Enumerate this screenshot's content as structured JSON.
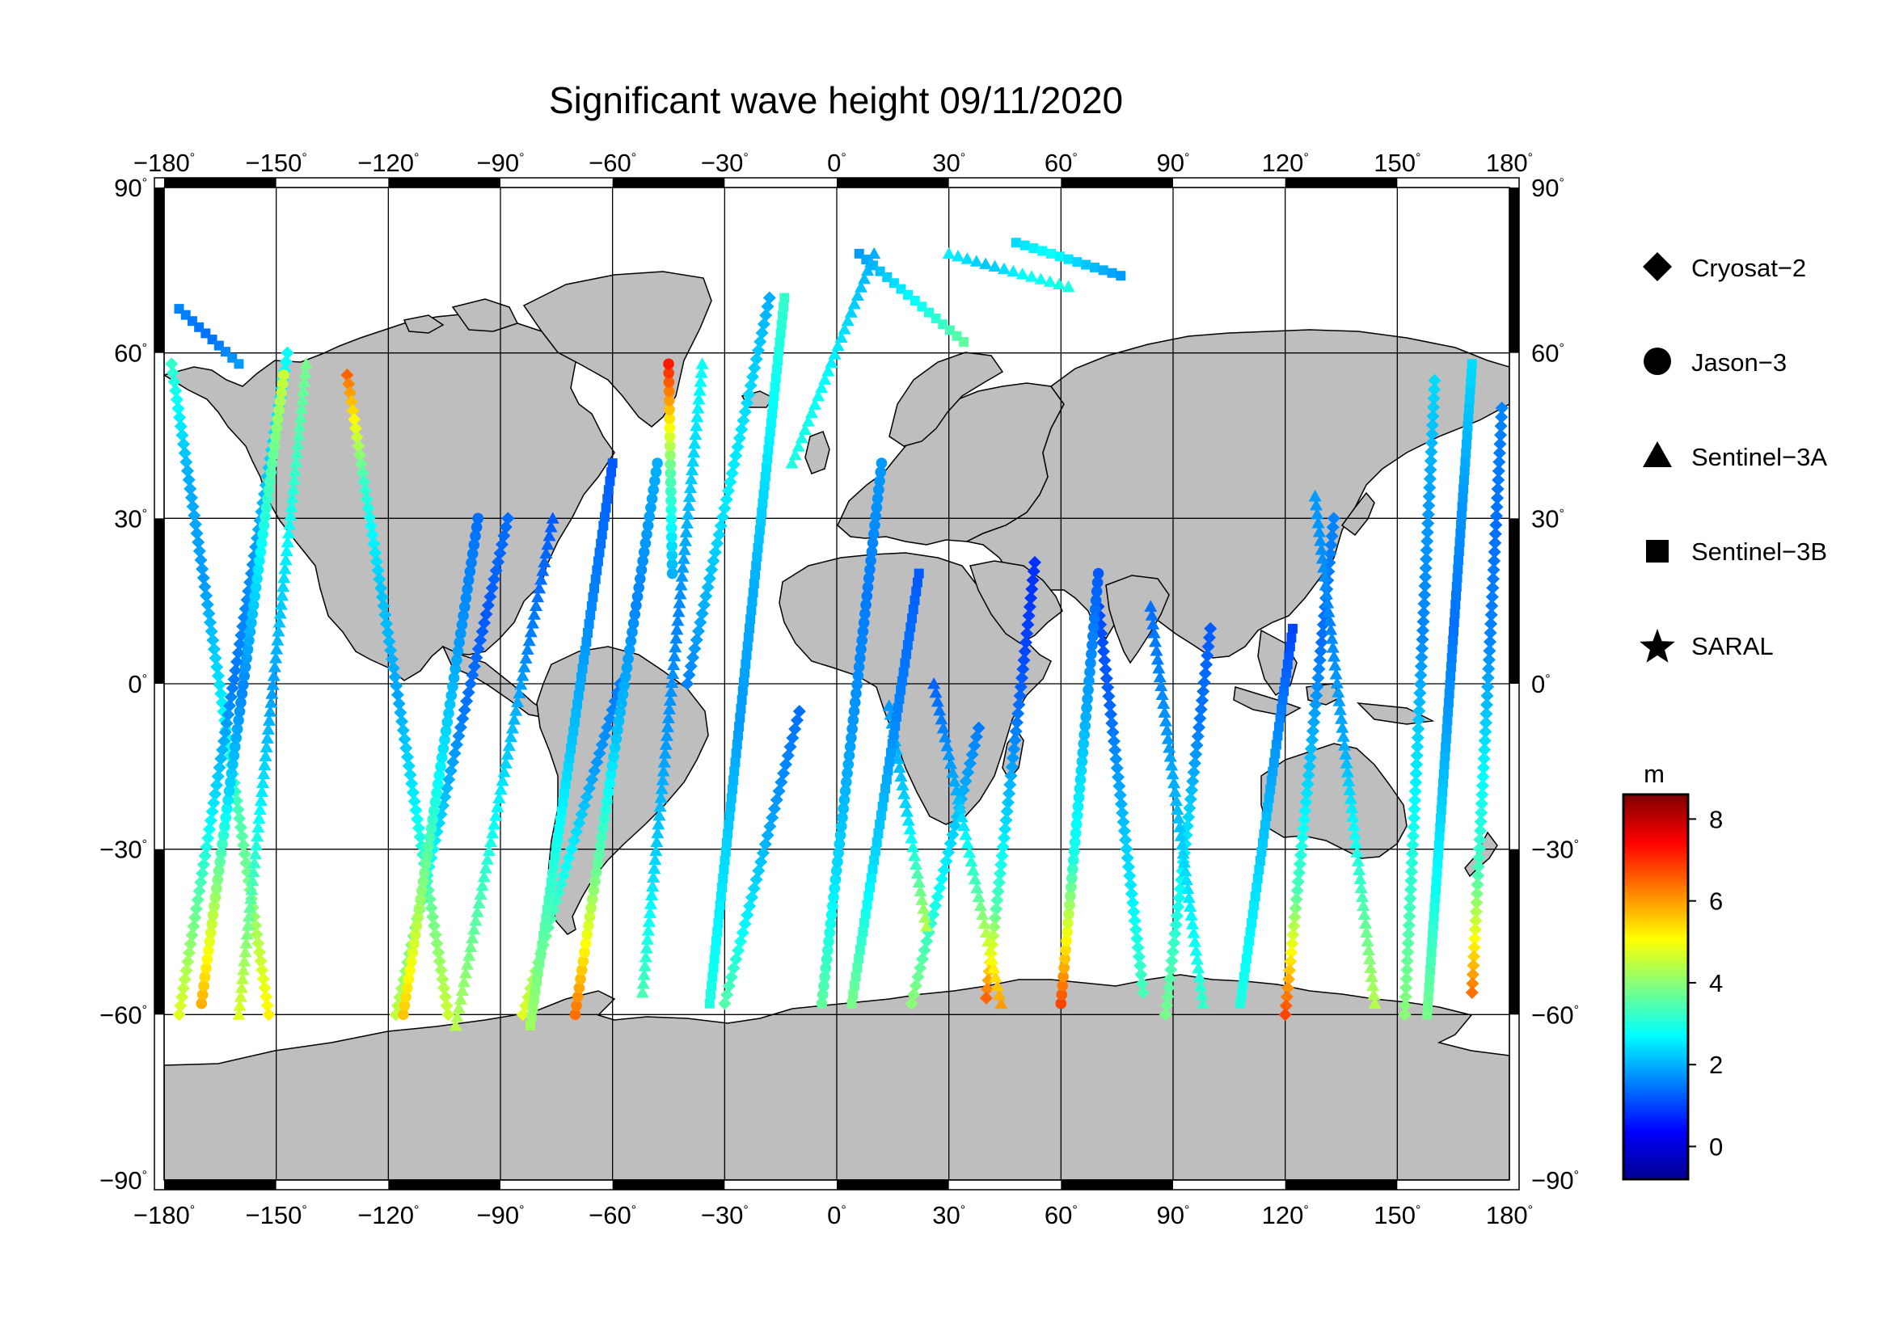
{
  "title": "Significant wave height 09/11/2020",
  "map": {
    "projection": "equirectangular",
    "lon_range": [
      -180,
      180
    ],
    "lat_range": [
      -90,
      90
    ],
    "lon_ticks": [
      -180,
      -150,
      -120,
      -90,
      -60,
      -30,
      0,
      30,
      60,
      90,
      120,
      150,
      180
    ],
    "lat_ticks": [
      90,
      60,
      30,
      0,
      -30,
      -60,
      -90
    ],
    "lon_tick_labels": [
      "−180",
      "−150",
      "−120",
      "−90",
      "−60",
      "−30",
      "0",
      "30",
      "60",
      "90",
      "120",
      "150",
      "180"
    ],
    "lat_tick_labels": [
      "90",
      "60",
      "30",
      "0",
      "−30",
      "−60",
      "−90"
    ],
    "degree_symbol": "°",
    "land_color": "#bebebe",
    "ocean_color": "#ffffff",
    "grid": true
  },
  "legend": {
    "title": "",
    "items": [
      {
        "label": "Cryosat−2",
        "symbol": "diamond"
      },
      {
        "label": "Jason−3",
        "symbol": "circle"
      },
      {
        "label": "Sentinel−3A",
        "symbol": "triangle"
      },
      {
        "label": "Sentinel−3B",
        "symbol": "square"
      },
      {
        "label": "SARAL",
        "symbol": "star"
      }
    ]
  },
  "colorbar": {
    "unit": "m",
    "range": [
      -0.8,
      8.6
    ],
    "ticks": [
      0,
      2,
      4,
      6,
      8
    ],
    "tick_labels": [
      "0",
      "2",
      "4",
      "6",
      "8"
    ],
    "colormap": "jet"
  },
  "chart_data": {
    "type": "scatter",
    "title": "Significant wave height 09/11/2020",
    "xlabel": "",
    "ylabel": "",
    "xlim": [
      -180,
      180
    ],
    "ylim": [
      -90,
      90
    ],
    "value_unit": "m",
    "series": [
      {
        "name": "Cryosat−2",
        "symbol": "diamond",
        "tracks": [
          {
            "start": [
              -178,
              58
            ],
            "end": [
              -152,
              -60
            ],
            "wave": [
              3.2,
              2.0,
              1.8,
              2.5,
              3.3,
              4.0,
              5.2
            ]
          },
          {
            "start": [
              -147,
              60
            ],
            "end": [
              -176,
              -60
            ],
            "wave": [
              2.8,
              2.3,
              1.7,
              1.5,
              2.4,
              3.6,
              4.8
            ]
          },
          {
            "start": [
              -131,
              56
            ],
            "end": [
              -104,
              -60
            ],
            "wave": [
              6.5,
              3.2,
              2.2,
              1.9,
              2.6,
              3.7,
              4.6
            ]
          },
          {
            "start": [
              -88,
              30
            ],
            "end": [
              -118,
              -60
            ],
            "wave": [
              1.4,
              1.2,
              1.5,
              2.3,
              3.5,
              4.5
            ]
          },
          {
            "start": [
              -58,
              0
            ],
            "end": [
              -84,
              -60
            ],
            "wave": [
              1.5,
              1.8,
              2.6,
              3.6,
              4.8
            ]
          },
          {
            "start": [
              -18,
              70
            ],
            "end": [
              -40,
              0
            ],
            "wave": [
              2.0,
              2.4,
              2.6,
              2.1,
              1.6
            ]
          },
          {
            "start": [
              -10,
              -5
            ],
            "end": [
              -30,
              -58
            ],
            "wave": [
              1.4,
              1.8,
              2.5,
              3.5
            ]
          },
          {
            "start": [
              38,
              -8
            ],
            "end": [
              20,
              -58
            ],
            "wave": [
              1.5,
              2.2,
              3.0,
              4.0
            ]
          },
          {
            "start": [
              53,
              22
            ],
            "end": [
              40,
              -57
            ],
            "wave": [
              0.8,
              1.0,
              1.6,
              2.4,
              3.5,
              6.5
            ]
          },
          {
            "start": [
              70,
              14
            ],
            "end": [
              82,
              -56
            ],
            "wave": [
              1.0,
              1.3,
              2.0,
              2.6,
              3.4
            ]
          },
          {
            "start": [
              100,
              10
            ],
            "end": [
              88,
              -60
            ],
            "wave": [
              1.2,
              1.5,
              2.4,
              3.0,
              3.8
            ]
          },
          {
            "start": [
              133,
              30
            ],
            "end": [
              120,
              -60
            ],
            "wave": [
              1.6,
              1.4,
              2.2,
              3.4,
              6.8
            ]
          },
          {
            "start": [
              160,
              55
            ],
            "end": [
              152,
              -60
            ],
            "wave": [
              2.4,
              1.8,
              1.6,
              2.5,
              3.2,
              4.0
            ]
          },
          {
            "start": [
              178,
              50
            ],
            "end": [
              170,
              -56
            ],
            "wave": [
              1.6,
              1.4,
              1.6,
              2.6,
              3.4,
              6.4
            ]
          }
        ]
      },
      {
        "name": "Jason−3",
        "symbol": "circle",
        "tracks": [
          {
            "start": [
              -170,
              -58
            ],
            "end": [
              -148,
              56
            ],
            "wave": [
              5.8,
              4.2,
              2.4,
              1.6,
              2.4,
              3.4,
              4.6
            ]
          },
          {
            "start": [
              -116,
              -60
            ],
            "end": [
              -96,
              30
            ],
            "wave": [
              5.6,
              4.0,
              2.6,
              1.8,
              1.4
            ]
          },
          {
            "start": [
              -70,
              -60
            ],
            "end": [
              -48,
              40
            ],
            "wave": [
              6.4,
              3.8,
              2.2,
              1.6,
              2.0
            ]
          },
          {
            "start": [
              -44,
              20
            ],
            "end": [
              -45,
              58
            ],
            "wave": [
              2.0,
              3.6,
              7.2
            ]
          },
          {
            "start": [
              -4,
              -58
            ],
            "end": [
              12,
              40
            ],
            "wave": [
              3.6,
              2.4,
              1.8,
              1.5,
              1.8
            ]
          },
          {
            "start": [
              60,
              -58
            ],
            "end": [
              70,
              20
            ],
            "wave": [
              6.8,
              3.0,
              2.0,
              1.2
            ]
          }
        ]
      },
      {
        "name": "Sentinel−3A",
        "symbol": "triangle",
        "tracks": [
          {
            "start": [
              -160,
              -60
            ],
            "end": [
              -142,
              58
            ],
            "wave": [
              4.8,
              3.6,
              2.6,
              1.8,
              2.4,
              3.2,
              3.8
            ]
          },
          {
            "start": [
              -102,
              -62
            ],
            "end": [
              -76,
              30
            ],
            "wave": [
              4.4,
              3.4,
              2.4,
              1.6,
              1.2
            ]
          },
          {
            "start": [
              -52,
              -56
            ],
            "end": [
              -36,
              58
            ],
            "wave": [
              3.4,
              2.4,
              1.8,
              1.6,
              2.2,
              2.8
            ]
          },
          {
            "start": [
              10,
              78
            ],
            "end": [
              -12,
              40
            ],
            "wave": [
              2.0,
              2.4,
              2.8,
              3.0
            ]
          },
          {
            "start": [
              24,
              -44
            ],
            "end": [
              14,
              -4
            ],
            "wave": [
              4.4,
              2.4,
              1.8
            ]
          },
          {
            "start": [
              44,
              -58
            ],
            "end": [
              26,
              0
            ],
            "wave": [
              6.0,
              3.6,
              2.0,
              1.3
            ]
          },
          {
            "start": [
              98,
              -58
            ],
            "end": [
              84,
              14
            ],
            "wave": [
              3.2,
              2.4,
              1.8,
              1.4
            ]
          },
          {
            "start": [
              144,
              -58
            ],
            "end": [
              128,
              34
            ],
            "wave": [
              4.4,
              3.2,
              2.0,
              1.6,
              1.8
            ]
          },
          {
            "start": [
              30,
              78
            ],
            "end": [
              62,
              72
            ],
            "wave": [
              2.6,
              2.2,
              2.8,
              3.0
            ]
          }
        ]
      },
      {
        "name": "Sentinel−3B",
        "symbol": "square",
        "tracks": [
          {
            "start": [
              -176,
              68
            ],
            "end": [
              -160,
              58
            ],
            "wave": [
              1.6,
              1.4,
              1.8
            ]
          },
          {
            "start": [
              -82,
              -62
            ],
            "end": [
              -60,
              40
            ],
            "wave": [
              4.2,
              3.2,
              2.2,
              1.6,
              1.2
            ]
          },
          {
            "start": [
              -34,
              -58
            ],
            "end": [
              -14,
              70
            ],
            "wave": [
              3.0,
              2.4,
              1.8,
              2.0,
              2.6,
              3.2
            ]
          },
          {
            "start": [
              6,
              78
            ],
            "end": [
              34,
              62
            ],
            "wave": [
              1.8,
              2.4,
              3.0,
              3.6
            ]
          },
          {
            "start": [
              48,
              80
            ],
            "end": [
              76,
              74
            ],
            "wave": [
              2.4,
              2.8,
              2.2,
              1.8
            ]
          },
          {
            "start": [
              4,
              -58
            ],
            "end": [
              22,
              20
            ],
            "wave": [
              3.8,
              2.4,
              1.6,
              1.2
            ]
          },
          {
            "start": [
              108,
              -58
            ],
            "end": [
              122,
              10
            ],
            "wave": [
              3.0,
              2.4,
              1.8,
              1.0
            ]
          },
          {
            "start": [
              158,
              -60
            ],
            "end": [
              170,
              58
            ],
            "wave": [
              3.8,
              2.8,
              2.0,
              1.4,
              1.8,
              2.4
            ]
          }
        ]
      }
    ]
  }
}
